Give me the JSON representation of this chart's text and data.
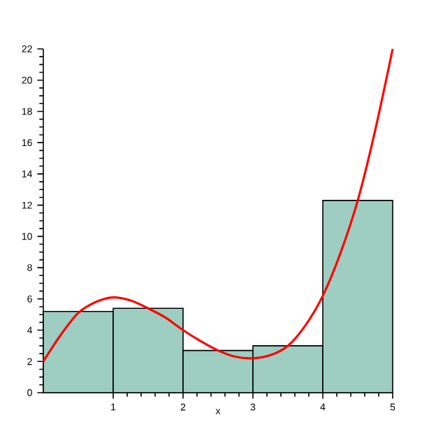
{
  "chart_data": {
    "type": "histogram",
    "xlabel": "x",
    "xlim": [
      0,
      5
    ],
    "ylim": [
      0,
      22
    ],
    "xticks": [
      1,
      2,
      3,
      4,
      5
    ],
    "yticks": [
      0,
      2,
      4,
      6,
      8,
      10,
      12,
      14,
      16,
      18,
      20,
      22
    ],
    "grid": false,
    "series": [
      {
        "color": "#9ecdc1",
        "bins": [
          0,
          1,
          2,
          3,
          4,
          5
        ],
        "values": [
          5.2,
          5.4,
          2.7,
          3.0,
          12.3
        ]
      },
      {
        "type": "line",
        "color": "#ff0000",
        "x": [
          0,
          0.25,
          0.5,
          0.75,
          1,
          1.25,
          1.5,
          1.75,
          2,
          2.25,
          2.5,
          2.75,
          3,
          3.25,
          3.5,
          3.75,
          4,
          4.25,
          4.5,
          4.75,
          5
        ],
        "values": [
          2.0,
          3.7,
          5.1,
          5.8,
          6.1,
          5.9,
          5.4,
          4.8,
          4.0,
          3.3,
          2.7,
          2.3,
          2.2,
          2.4,
          3.0,
          4.3,
          6.2,
          8.9,
          12.3,
          16.8,
          22.0
        ]
      }
    ]
  }
}
